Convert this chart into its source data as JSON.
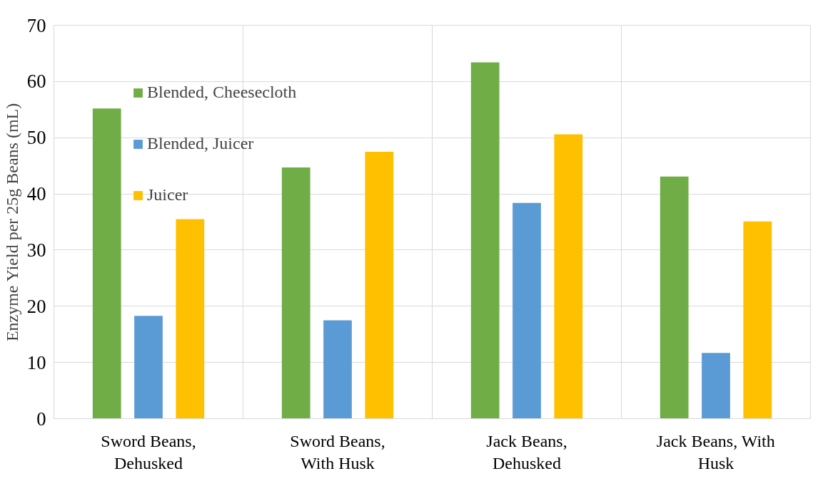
{
  "chart_data": {
    "type": "bar",
    "ylabel": "Enzyme Yield per 25g Beans (mL)",
    "categories": [
      "Sword Beans, Dehusked",
      "Sword Beans, With Husk",
      "Jack Beans, Dehusked",
      "Jack Beans, With Husk"
    ],
    "series": [
      {
        "name": "Blended, Cheesecloth",
        "color": "#70ad47",
        "values": [
          55.2,
          44.7,
          63.4,
          43.1
        ]
      },
      {
        "name": "Blended, Juicer",
        "color": "#5b9bd5",
        "values": [
          18.3,
          17.5,
          38.4,
          11.7
        ]
      },
      {
        "name": "Juicer",
        "color": "#ffc000",
        "values": [
          35.5,
          47.5,
          50.6,
          35.1
        ]
      }
    ],
    "ylim": [
      0,
      70
    ],
    "yticks": [
      0,
      10,
      20,
      30,
      40,
      50,
      60,
      70
    ],
    "grid": true,
    "legend": "top left"
  }
}
